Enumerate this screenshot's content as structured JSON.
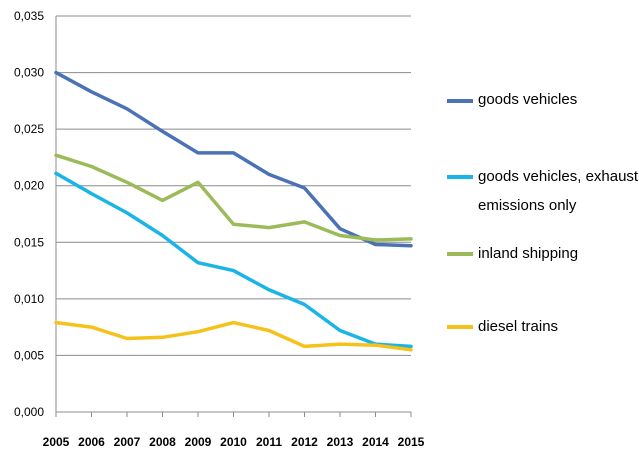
{
  "chart_data": {
    "type": "line",
    "title": "",
    "xlabel": "",
    "ylabel": "",
    "categories": [
      "2005",
      "2006",
      "2007",
      "2008",
      "2009",
      "2010",
      "2011",
      "2012",
      "2013",
      "2014",
      "2015"
    ],
    "ylim": [
      0,
      0.035
    ],
    "yticks": [
      "0,000",
      "0,005",
      "0,010",
      "0,015",
      "0,020",
      "0,025",
      "0,030",
      "0,035"
    ],
    "grid": true,
    "legend_position": "right",
    "series": [
      {
        "name": "goods vehicles",
        "color": "#4a72b5",
        "values": [
          0.03,
          0.0283,
          0.0268,
          0.0248,
          0.0229,
          0.0229,
          0.021,
          0.0198,
          0.0162,
          0.0148,
          0.0147
        ]
      },
      {
        "name": "goods vehicles, exhaust emissions only",
        "color": "#1ab4e6",
        "values": [
          0.0211,
          0.0193,
          0.0176,
          0.0156,
          0.0132,
          0.0125,
          0.0108,
          0.0095,
          0.0072,
          0.006,
          0.0058
        ]
      },
      {
        "name": "inland shipping",
        "color": "#9bbb59",
        "values": [
          0.0227,
          0.0217,
          0.0203,
          0.0187,
          0.0203,
          0.0166,
          0.0163,
          0.0168,
          0.0156,
          0.0152,
          0.0153
        ]
      },
      {
        "name": "diesel trains",
        "color": "#f5c21b",
        "values": [
          0.0079,
          0.0075,
          0.0065,
          0.0066,
          0.0071,
          0.0079,
          0.0072,
          0.0058,
          0.006,
          0.0059,
          0.0055
        ]
      }
    ]
  }
}
